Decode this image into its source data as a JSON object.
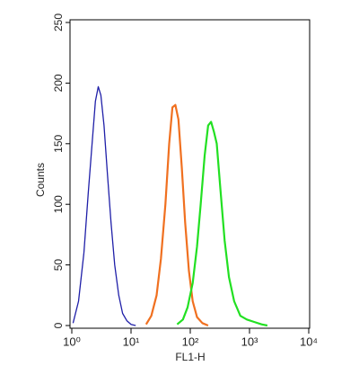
{
  "chart_data": {
    "type": "line",
    "xlabel": "FL1-H",
    "ylabel": "Counts",
    "xscale": "log",
    "xlim": [
      1,
      10000
    ],
    "xticks": [
      {
        "value": 1,
        "label": "10⁰"
      },
      {
        "value": 10,
        "label": "10¹"
      },
      {
        "value": 100,
        "label": "10²"
      },
      {
        "value": 1000,
        "label": "10³"
      },
      {
        "value": 10000,
        "label": "10⁴"
      }
    ],
    "ylim": [
      0,
      250
    ],
    "yticks": [
      0,
      50,
      100,
      150,
      200,
      250
    ],
    "series": [
      {
        "color": "#1f1fa8",
        "x": [
          1.05,
          1.3,
          1.6,
          1.9,
          2.2,
          2.5,
          2.8,
          3.1,
          3.5,
          4,
          4.6,
          5.3,
          6.2,
          7.2,
          8.5,
          10,
          12
        ],
        "values": [
          2,
          20,
          60,
          110,
          150,
          185,
          197,
          190,
          165,
          125,
          85,
          50,
          25,
          10,
          4,
          1,
          0
        ]
      },
      {
        "color": "#f07020",
        "x": [
          18,
          22,
          27,
          32,
          38,
          44,
          50,
          56,
          63,
          72,
          82,
          95,
          110,
          130,
          160,
          200
        ],
        "values": [
          1,
          8,
          25,
          55,
          100,
          150,
          180,
          182,
          170,
          130,
          85,
          45,
          20,
          7,
          2,
          0
        ]
      },
      {
        "color": "#22e022",
        "x": [
          60,
          75,
          90,
          110,
          130,
          150,
          175,
          200,
          225,
          250,
          280,
          320,
          380,
          450,
          550,
          700,
          900,
          1200,
          1600,
          2000
        ],
        "values": [
          1,
          5,
          15,
          35,
          65,
          100,
          140,
          165,
          168,
          160,
          150,
          115,
          70,
          40,
          20,
          8,
          5,
          3,
          1,
          0
        ]
      }
    ]
  }
}
